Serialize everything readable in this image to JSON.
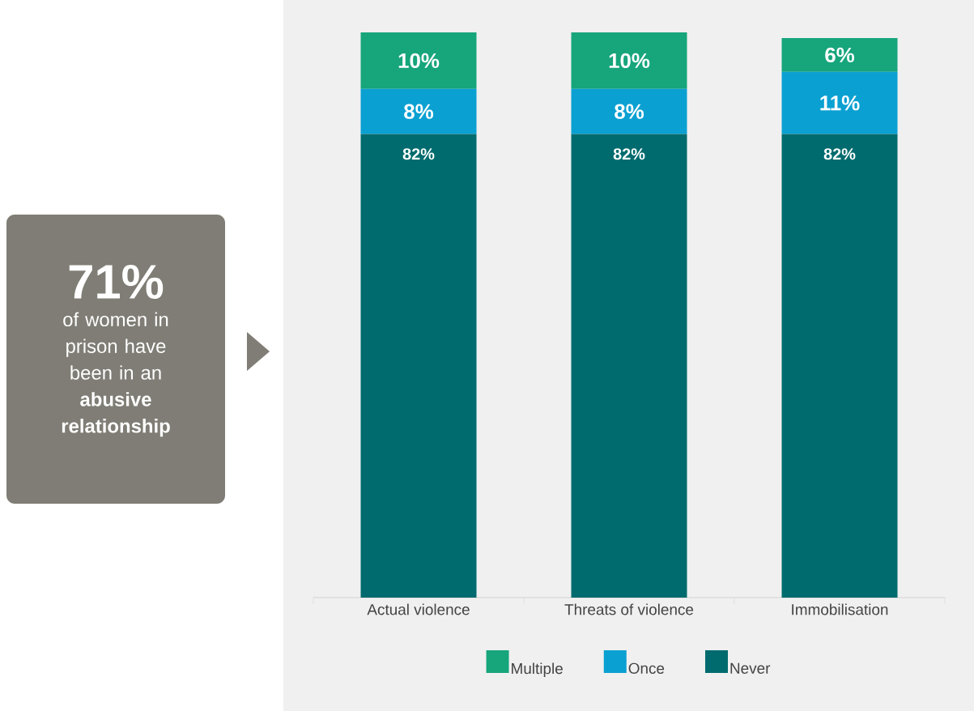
{
  "chart_data": {
    "type": "bar",
    "stacked": true,
    "categories": [
      "Actual violence",
      "Threats of violence",
      "Immobilisation"
    ],
    "series": [
      {
        "name": "Never",
        "color": "#006b6e",
        "values": [
          82,
          82,
          82
        ],
        "value_labels": [
          "82%",
          "82%",
          "82%"
        ]
      },
      {
        "name": "Once",
        "color": "#0aa0d2",
        "values": [
          8,
          8,
          11
        ],
        "value_labels": [
          "8%",
          "8%",
          "11%"
        ]
      },
      {
        "name": "Multiple",
        "color": "#17a57c",
        "values": [
          10,
          10,
          6
        ],
        "value_labels": [
          "10%",
          "10%",
          "6%"
        ]
      }
    ],
    "legend": "bottom",
    "annotations": [
      "71%",
      "of women in prison have been in an **abusive relationship**"
    ]
  }
}
